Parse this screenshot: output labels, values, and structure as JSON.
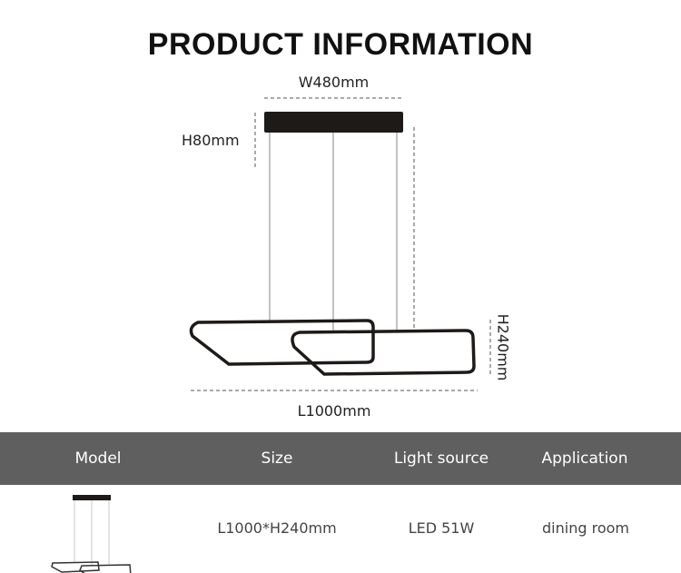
{
  "title": "PRODUCT INFORMATION",
  "dimensions": {
    "width": "W480mm",
    "canopy_height": "H80mm",
    "height": "H240mm",
    "length": "L1000mm"
  },
  "table": {
    "headers": [
      "Model",
      "Size",
      "Light source",
      "Application"
    ],
    "row": {
      "size": "L1000*H240mm",
      "light_source": "LED 51W",
      "application": "dining room"
    }
  },
  "colors": {
    "header_band": "#5f5f5f",
    "fixture": "#1e1a18"
  }
}
